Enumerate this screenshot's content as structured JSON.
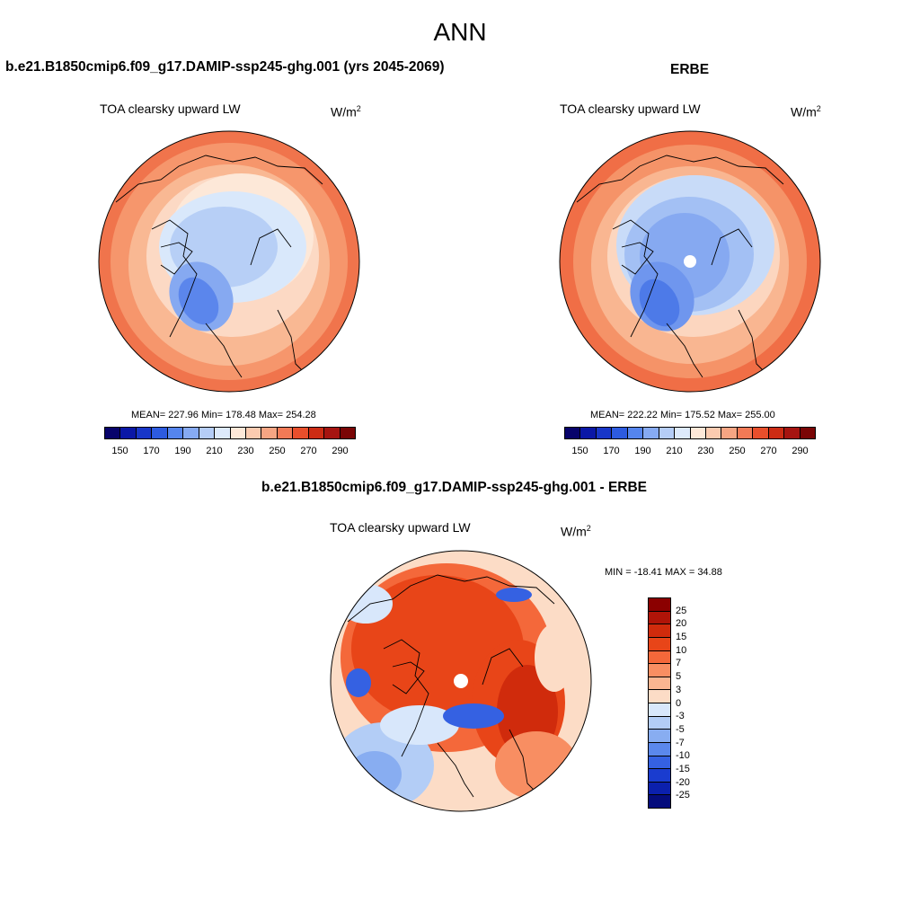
{
  "figure": {
    "title": "ANN"
  },
  "top_left": {
    "case_title": "b.e21.B1850cmip6.f09_g17.DAMIP-ssp245-ghg.001 (yrs 2045-2069)",
    "panel_label": "TOA clearsky upward LW",
    "units": "W/m²",
    "stats": "MEAN= 227.96  Min= 178.48  Max= 254.28",
    "field": {
      "min": 178.48,
      "max": 254.28,
      "mean": 227.96
    }
  },
  "top_right": {
    "case_title": "ERBE",
    "panel_label": "TOA clearsky upward LW",
    "units": "W/m²",
    "stats": "MEAN= 222.22  Min= 175.52  Max= 255.00",
    "field": {
      "min": 175.52,
      "max": 255.0,
      "mean": 222.22
    }
  },
  "bottom": {
    "case_title": "b.e21.B1850cmip6.f09_g17.DAMIP-ssp245-ghg.001 - ERBE",
    "panel_label": "TOA clearsky upward LW",
    "units": "W/m²",
    "minmax": "MIN = -18.41 MAX =  34.88",
    "field": {
      "min": -18.41,
      "max": 34.88
    }
  },
  "top_colorbar": {
    "colors": [
      "#08046b",
      "#0a17a6",
      "#1836c8",
      "#2d5be0",
      "#5585ee",
      "#86aaf2",
      "#b5cdf6",
      "#ddeafb",
      "#fde8d8",
      "#fbcbb0",
      "#f7a583",
      "#f27a56",
      "#e84f2c",
      "#cc2c14",
      "#a61410",
      "#7a0606"
    ],
    "labels": [
      "150",
      "170",
      "190",
      "210",
      "230",
      "250",
      "270",
      "290"
    ]
  },
  "diff_colorbar": {
    "colors": [
      "#8b0000",
      "#b01408",
      "#d02b0c",
      "#e84518",
      "#f4683a",
      "#f88e62",
      "#fab591",
      "#fcdcc6",
      "#d8e7fb",
      "#b3cdf6",
      "#88adf1",
      "#5b88ec",
      "#3561e2",
      "#1a3ccf",
      "#0b20ad",
      "#050c7c"
    ],
    "labels": [
      "25",
      "20",
      "15",
      "10",
      "7",
      "5",
      "3",
      "0",
      "-3",
      "-5",
      "-7",
      "-10",
      "-15",
      "-20",
      "-25"
    ]
  }
}
